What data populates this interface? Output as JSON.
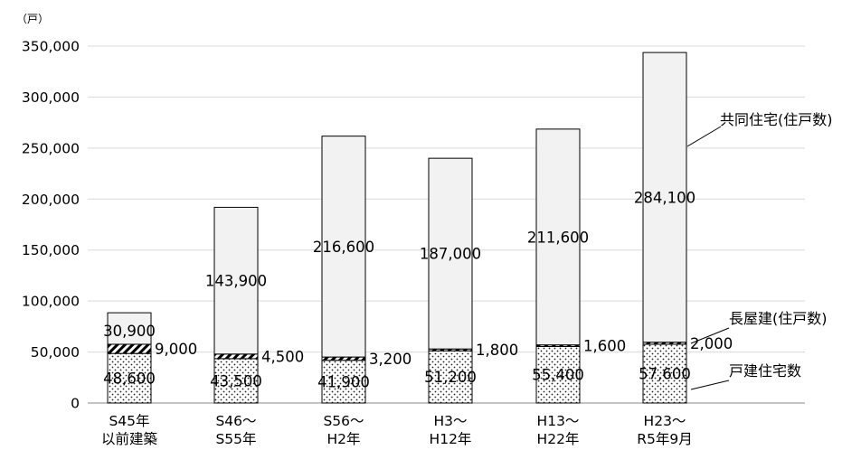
{
  "chart_data": {
    "type": "bar",
    "stacked": true,
    "unit": "（戸）",
    "categories": [
      [
        "S45年",
        "以前建築"
      ],
      [
        "S46～",
        "S55年"
      ],
      [
        "S56～",
        "H2年"
      ],
      [
        "H3～",
        "H12年"
      ],
      [
        "H13～",
        "H22年"
      ],
      [
        "H23～",
        "R5年9月"
      ]
    ],
    "series": [
      {
        "name": "戸建住宅数",
        "pattern": "dots",
        "values": [
          48600,
          43500,
          41900,
          51200,
          55400,
          57600
        ],
        "labels": [
          "48,600",
          "43,500",
          "41,900",
          "51,200",
          "55,400",
          "57,600"
        ]
      },
      {
        "name": "長屋建(住戸数)",
        "pattern": "diagonal-stripes",
        "values": [
          9000,
          4500,
          3200,
          1800,
          1600,
          2000
        ],
        "labels": [
          "9,000",
          "4,500",
          "3,200",
          "1,800",
          "1,600",
          "2,000"
        ]
      },
      {
        "name": "共同住宅(住戸数)",
        "pattern": "solid",
        "color": "#f2f2f2",
        "values": [
          30900,
          143900,
          216600,
          187000,
          211600,
          284100
        ],
        "labels": [
          "30,900",
          "143,900",
          "216,600",
          "187,000",
          "211,600",
          "284,100"
        ]
      }
    ],
    "ylim": [
      0,
      350000
    ],
    "yticks": [
      "0",
      "50,000",
      "100,000",
      "150,000",
      "200,000",
      "250,000",
      "300,000",
      "350,000"
    ],
    "grid": true,
    "legend_placement": "right, leader-line callouts"
  }
}
